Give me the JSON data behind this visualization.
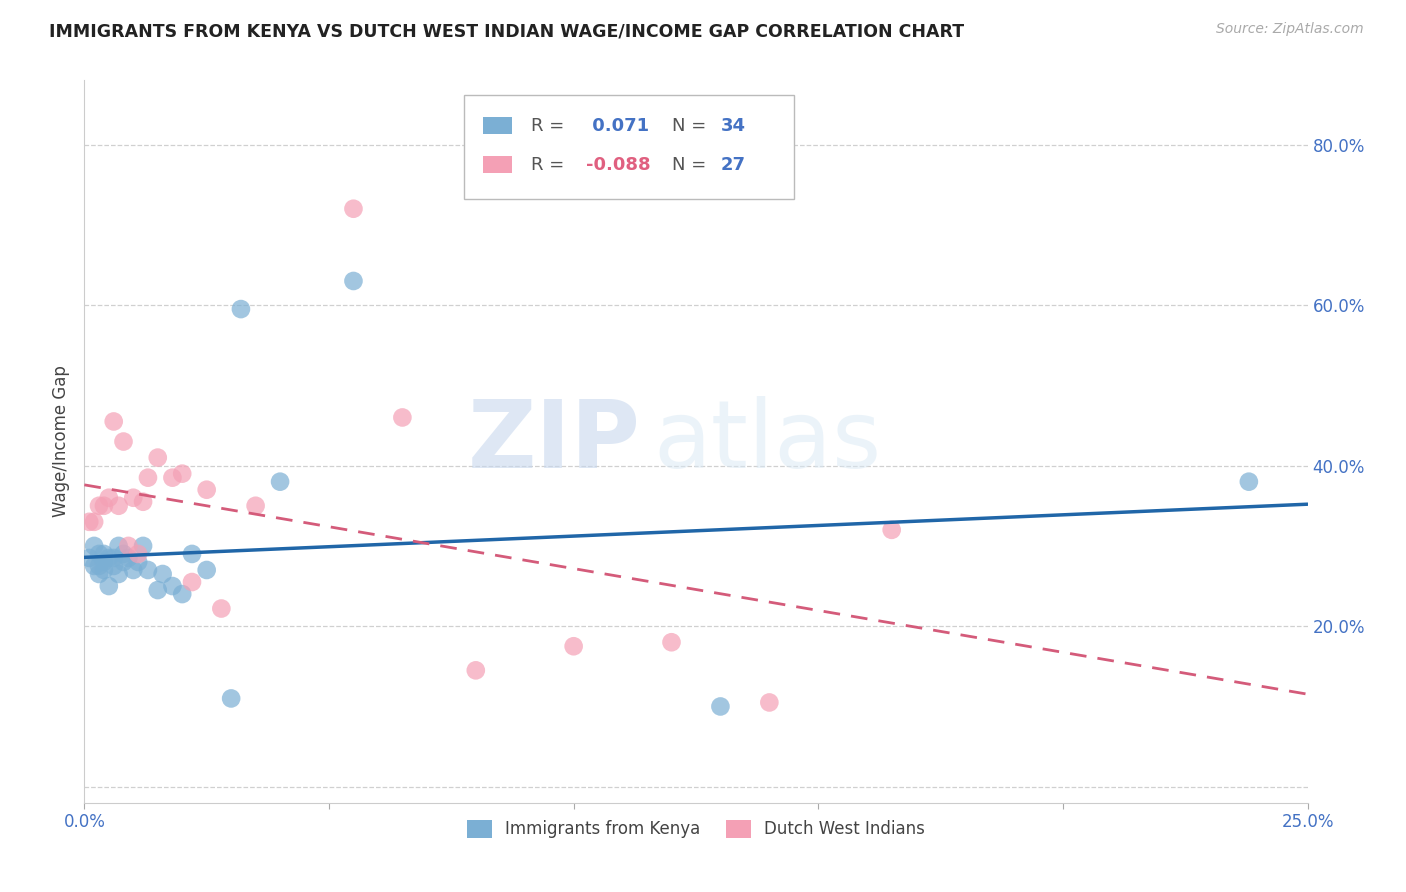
{
  "title": "IMMIGRANTS FROM KENYA VS DUTCH WEST INDIAN WAGE/INCOME GAP CORRELATION CHART",
  "source": "Source: ZipAtlas.com",
  "ylabel": "Wage/Income Gap",
  "xlim": [
    0.0,
    0.25
  ],
  "ylim": [
    -0.02,
    0.88
  ],
  "xticks": [
    0.0,
    0.05,
    0.1,
    0.15,
    0.2,
    0.25
  ],
  "xtick_labels": [
    "0.0%",
    "",
    "",
    "",
    "",
    "25.0%"
  ],
  "yticks": [
    0.0,
    0.2,
    0.4,
    0.6,
    0.8
  ],
  "ytick_labels": [
    "",
    "20.0%",
    "40.0%",
    "60.0%",
    "80.0%"
  ],
  "kenya_R": 0.071,
  "kenya_N": 34,
  "dwi_R": -0.088,
  "dwi_N": 27,
  "kenya_color": "#7bafd4",
  "dwi_color": "#f4a0b5",
  "kenya_line_color": "#2066a8",
  "dwi_line_color": "#d45b7a",
  "kenya_x": [
    0.001,
    0.002,
    0.002,
    0.003,
    0.003,
    0.003,
    0.004,
    0.004,
    0.004,
    0.005,
    0.005,
    0.006,
    0.006,
    0.007,
    0.007,
    0.008,
    0.008,
    0.009,
    0.01,
    0.011,
    0.012,
    0.013,
    0.015,
    0.016,
    0.018,
    0.02,
    0.022,
    0.025,
    0.03,
    0.032,
    0.04,
    0.055,
    0.13,
    0.238
  ],
  "kenya_y": [
    0.285,
    0.275,
    0.3,
    0.29,
    0.275,
    0.265,
    0.29,
    0.28,
    0.27,
    0.285,
    0.25,
    0.285,
    0.275,
    0.3,
    0.265,
    0.28,
    0.29,
    0.285,
    0.27,
    0.28,
    0.3,
    0.27,
    0.245,
    0.265,
    0.25,
    0.24,
    0.29,
    0.27,
    0.11,
    0.595,
    0.38,
    0.63,
    0.1,
    0.38
  ],
  "dwi_x": [
    0.001,
    0.002,
    0.003,
    0.004,
    0.005,
    0.006,
    0.007,
    0.008,
    0.009,
    0.01,
    0.011,
    0.012,
    0.013,
    0.015,
    0.018,
    0.02,
    0.022,
    0.025,
    0.028,
    0.035,
    0.055,
    0.065,
    0.08,
    0.1,
    0.12,
    0.14,
    0.165
  ],
  "dwi_y": [
    0.33,
    0.33,
    0.35,
    0.35,
    0.36,
    0.455,
    0.35,
    0.43,
    0.3,
    0.36,
    0.29,
    0.355,
    0.385,
    0.41,
    0.385,
    0.39,
    0.255,
    0.37,
    0.222,
    0.35,
    0.72,
    0.46,
    0.145,
    0.175,
    0.18,
    0.105,
    0.32
  ],
  "watermark_zip": "ZIP",
  "watermark_atlas": "atlas",
  "background_color": "#ffffff",
  "grid_color": "#d0d0d0",
  "legend_label1": "Immigrants from Kenya",
  "legend_label2": "Dutch West Indians"
}
